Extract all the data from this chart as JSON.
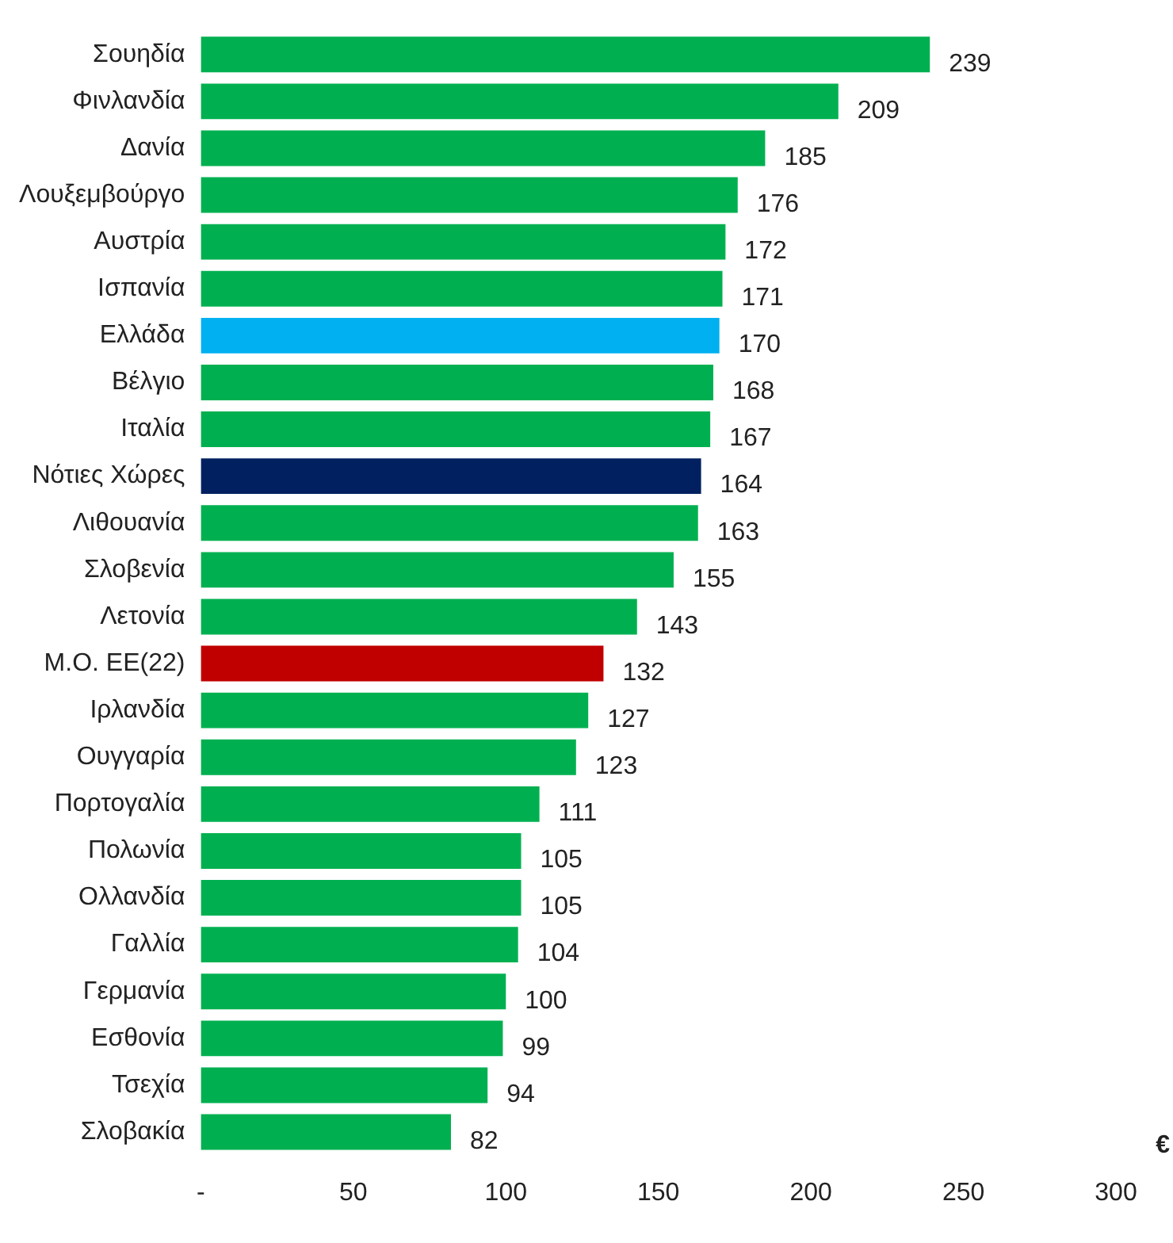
{
  "chart_data": {
    "type": "bar",
    "orientation": "horizontal",
    "xlabel": "€",
    "categories": [
      "Σουηδία",
      "Φινλανδία",
      "Δανία",
      "Λουξεμβούργο",
      "Αυστρία",
      "Ισπανία",
      "Ελλάδα",
      "Βέλγιο",
      "Ιταλία",
      "Νότιες Χώρες",
      "Λιθουανία",
      "Σλοβενία",
      "Λετονία",
      "Μ.Ο. ΕΕ(22)",
      "Ιρλανδία",
      "Ουγγαρία",
      "Πορτογαλία",
      "Πολωνία",
      "Ολλανδία",
      "Γαλλία",
      "Γερμανία",
      "Εσθονία",
      "Τσεχία",
      "Σλοβακία"
    ],
    "values": [
      239,
      209,
      185,
      176,
      172,
      171,
      170,
      168,
      167,
      164,
      163,
      155,
      143,
      132,
      127,
      123,
      111,
      105,
      105,
      104,
      100,
      99,
      94,
      82
    ],
    "colors": [
      "#00b050",
      "#00b050",
      "#00b050",
      "#00b050",
      "#00b050",
      "#00b050",
      "#00b0f0",
      "#00b050",
      "#00b050",
      "#002060",
      "#00b050",
      "#00b050",
      "#00b050",
      "#c00000",
      "#00b050",
      "#00b050",
      "#00b050",
      "#00b050",
      "#00b050",
      "#00b050",
      "#00b050",
      "#00b050",
      "#00b050",
      "#00b050"
    ],
    "xlim": [
      0,
      300
    ],
    "xticks": [
      {
        "value": 0,
        "label": "-"
      },
      50,
      100,
      150,
      200,
      250,
      300
    ],
    "data_labels": true,
    "grid": false,
    "legend": false
  }
}
